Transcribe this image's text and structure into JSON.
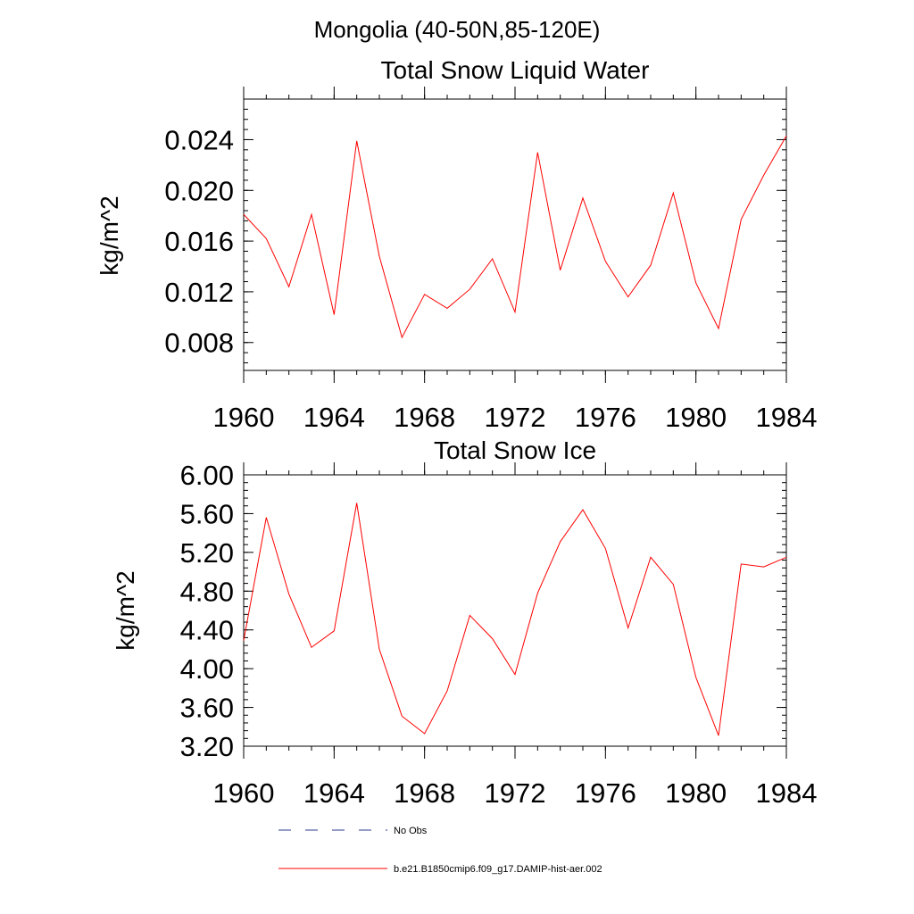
{
  "figure": {
    "suptitle": "Mongolia (40-50N,85-120E)"
  },
  "chart_data": [
    {
      "type": "line",
      "title": "Total Snow Liquid Water",
      "xlabel": "",
      "ylabel": "kg/m^2",
      "xlim": [
        1960,
        1984
      ],
      "ylim": [
        0.0058,
        0.0272
      ],
      "x_ticks": [
        1960,
        1964,
        1968,
        1972,
        1976,
        1980,
        1984
      ],
      "x_tick_labels": [
        "1960",
        "1964",
        "1968",
        "1972",
        "1976",
        "1980",
        "1984"
      ],
      "y_ticks": [
        0.008,
        0.012,
        0.016,
        0.02,
        0.024
      ],
      "y_tick_labels": [
        "0.008",
        "0.012",
        "0.016",
        "0.020",
        "0.024"
      ],
      "y_minor_step": 0.0008,
      "x_minor_step": 1,
      "grid": false,
      "series": [
        {
          "name": "b.e21.B1850cmip6.f09_g17.DAMIP-hist-aer.002",
          "color": "#ff0000",
          "x": [
            1960,
            1961,
            1962,
            1963,
            1964,
            1965,
            1966,
            1967,
            1968,
            1969,
            1970,
            1971,
            1972,
            1973,
            1974,
            1975,
            1976,
            1977,
            1978,
            1979,
            1980,
            1981,
            1982,
            1983,
            1984
          ],
          "values": [
            0.0181,
            0.0162,
            0.0124,
            0.0181,
            0.0102,
            0.0239,
            0.0148,
            0.0084,
            0.0118,
            0.0107,
            0.0122,
            0.0146,
            0.0104,
            0.023,
            0.0137,
            0.0194,
            0.0144,
            0.0116,
            0.0141,
            0.0198,
            0.0127,
            0.0091,
            0.0177,
            0.0212,
            0.0243
          ]
        }
      ]
    },
    {
      "type": "line",
      "title": "Total Snow Ice",
      "xlabel": "",
      "ylabel": "kg/m^2",
      "xlim": [
        1960,
        1984
      ],
      "ylim": [
        3.2,
        6.0
      ],
      "x_ticks": [
        1960,
        1964,
        1968,
        1972,
        1976,
        1980,
        1984
      ],
      "x_tick_labels": [
        "1960",
        "1964",
        "1968",
        "1972",
        "1976",
        "1980",
        "1984"
      ],
      "y_ticks": [
        3.2,
        3.6,
        4.0,
        4.4,
        4.8,
        5.2,
        5.6,
        6.0
      ],
      "y_tick_labels": [
        "3.20",
        "3.60",
        "4.00",
        "4.40",
        "4.80",
        "5.20",
        "5.60",
        "6.00"
      ],
      "y_minor_step": 0.08,
      "x_minor_step": 1,
      "grid": false,
      "series": [
        {
          "name": "b.e21.B1850cmip6.f09_g17.DAMIP-hist-aer.002",
          "color": "#ff0000",
          "x": [
            1960,
            1961,
            1962,
            1963,
            1964,
            1965,
            1966,
            1967,
            1968,
            1969,
            1970,
            1971,
            1972,
            1973,
            1974,
            1975,
            1976,
            1977,
            1978,
            1979,
            1980,
            1981,
            1982,
            1983,
            1984
          ],
          "values": [
            4.29,
            5.56,
            4.77,
            4.22,
            4.39,
            5.71,
            4.2,
            3.51,
            3.33,
            3.77,
            4.55,
            4.31,
            3.94,
            4.78,
            5.31,
            5.64,
            5.24,
            4.42,
            5.15,
            4.87,
            3.91,
            3.31,
            5.08,
            5.05,
            5.15
          ]
        }
      ]
    }
  ],
  "legend": {
    "placement": "bottom",
    "items": [
      {
        "label": "No Obs",
        "color": "#2b3a8f",
        "dash": "dashed"
      },
      {
        "label": "b.e21.B1850cmip6.f09_g17.DAMIP-hist-aer.002",
        "color": "#ff0000",
        "dash": "solid"
      }
    ]
  }
}
